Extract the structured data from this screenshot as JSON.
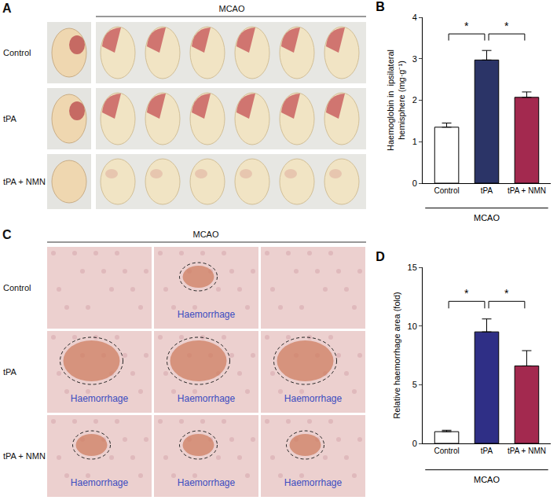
{
  "chart_data": [
    {
      "type": "bar",
      "title": "B",
      "categories": [
        "Control",
        "tPA",
        "tPA + NMN"
      ],
      "values": [
        1.35,
        2.97,
        2.07
      ],
      "errors": [
        0.1,
        0.23,
        0.13
      ],
      "colors": [
        "#ffffff",
        "#2b3467",
        "#a3294f"
      ],
      "group_label": "MCAO",
      "ylabel": [
        "Haemoglobin in  ipsilateral",
        "hemisphere (mg·g⁻¹)"
      ],
      "ylim": [
        0,
        4
      ],
      "yticks": [
        0,
        1,
        2,
        3,
        4
      ],
      "grid": false,
      "significance": [
        {
          "between": [
            "Control",
            "tPA"
          ],
          "label": "*"
        },
        {
          "between": [
            "tPA",
            "tPA + NMN"
          ],
          "label": "*"
        }
      ]
    },
    {
      "type": "bar",
      "title": "D",
      "categories": [
        "Control",
        "tPA",
        "tPA + NMN"
      ],
      "values": [
        1.0,
        9.5,
        6.6
      ],
      "errors": [
        0.12,
        1.1,
        1.3
      ],
      "colors": [
        "#ffffff",
        "#2f2f86",
        "#a3294f"
      ],
      "group_label": "MCAO",
      "ylabel": [
        "Relative haemorrhage area (fold)"
      ],
      "ylim": [
        0,
        15
      ],
      "yticks": [
        0,
        5,
        10,
        15
      ],
      "grid": false,
      "significance": [
        {
          "between": [
            "Control",
            "tPA"
          ],
          "label": "*"
        },
        {
          "between": [
            "tPA",
            "tPA + NMN"
          ],
          "label": "*"
        }
      ]
    }
  ],
  "figure_panels": [
    {
      "label": "A",
      "header": "MCAO",
      "rows": [
        "Control",
        "tPA",
        "tPA + NMN"
      ]
    },
    {
      "label": "C",
      "header": "MCAO",
      "rows": [
        {
          "name": "Control",
          "cells": [
            null,
            "Haemorrhage",
            null
          ]
        },
        {
          "name": "tPA",
          "cells": [
            "Haemorrhage",
            "Haemorrhage",
            "Haemorrhage"
          ]
        },
        {
          "name": "tPA + NMN",
          "cells": [
            "Haemorrhage",
            "Haemorrhage",
            "Haemorrhage"
          ]
        }
      ]
    }
  ]
}
